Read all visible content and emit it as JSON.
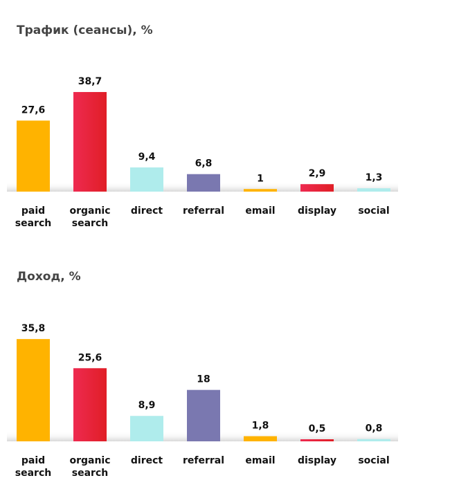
{
  "chart_data": [
    {
      "type": "bar",
      "title": "Трафик (сеансы), %",
      "xlabel": "",
      "ylabel": "",
      "categories": [
        "paid\nsearch",
        "organic\nsearch",
        "direct",
        "referral",
        "email",
        "display",
        "social"
      ],
      "values": [
        27.6,
        38.7,
        9.4,
        6.8,
        1,
        2.9,
        1.3
      ],
      "value_labels": [
        "27,6",
        "38,7",
        "9,4",
        "6,8",
        "1",
        "2,9",
        "1,3"
      ],
      "colors": [
        "#FFB300",
        "#E8203C",
        "#AFECEC",
        "#7A78B0",
        "#FFB300",
        "#E8203C",
        "#AFECEC"
      ],
      "ylim": [
        0,
        40
      ],
      "grid": false,
      "legend": "none"
    },
    {
      "type": "bar",
      "title": "Доход, %",
      "xlabel": "",
      "ylabel": "",
      "categories": [
        "paid\nsearch",
        "organic\nsearch",
        "direct",
        "referral",
        "email",
        "display",
        "social"
      ],
      "values": [
        35.8,
        25.6,
        8.9,
        18,
        1.8,
        0.5,
        0.8
      ],
      "value_labels": [
        "35,8",
        "25,6",
        "8,9",
        "18",
        "1,8",
        "0,5",
        "0,8"
      ],
      "colors": [
        "#FFB300",
        "#E8203C",
        "#AFECEC",
        "#7A78B0",
        "#FFB300",
        "#E8203C",
        "#AFECEC"
      ],
      "ylim": [
        0,
        40
      ],
      "grid": false,
      "legend": "none"
    }
  ]
}
